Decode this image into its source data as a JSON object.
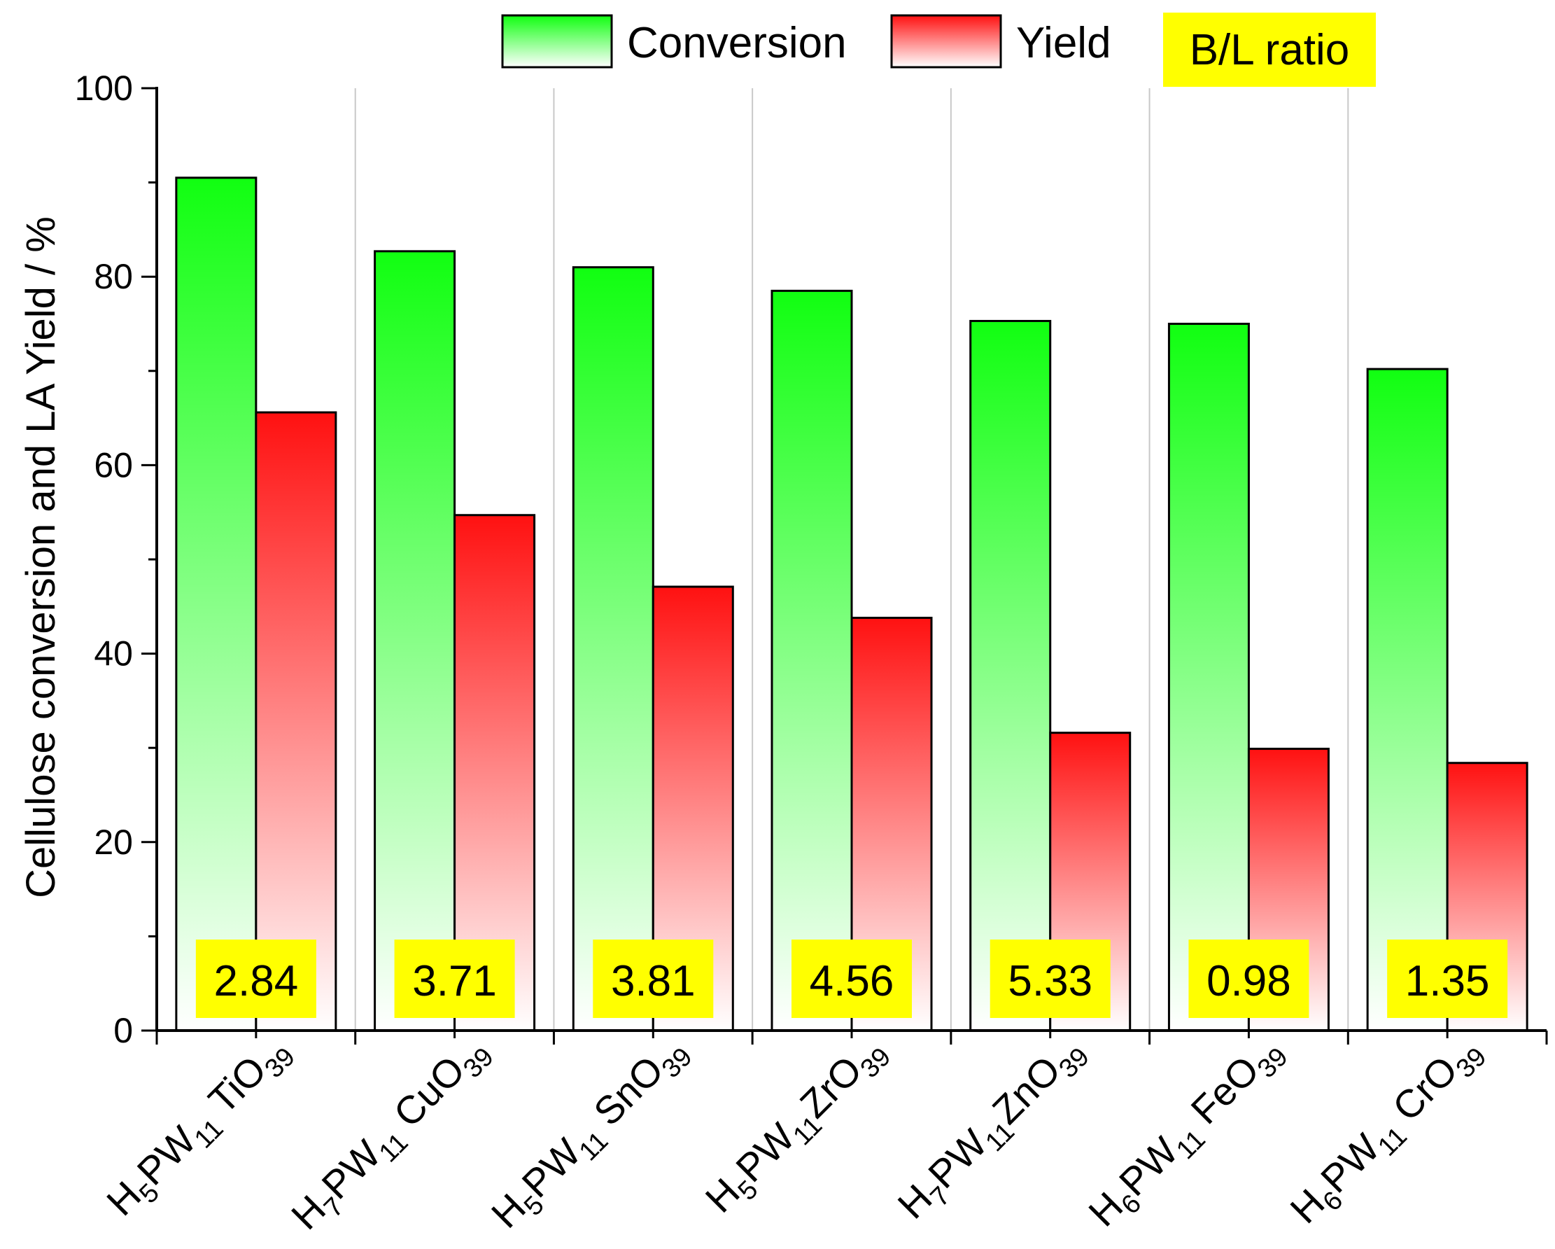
{
  "chart_data": {
    "type": "bar",
    "title": "",
    "xlabel": "",
    "ylabel": "Cellulose conversion and LA Yield / %",
    "ylim": [
      0,
      100
    ],
    "yticks": [
      0,
      20,
      40,
      60,
      80,
      100
    ],
    "grid": "vertical separators between categories",
    "legend_position": "top",
    "categories": [
      {
        "parts": [
          {
            "t": "H",
            "s": false
          },
          {
            "t": "5",
            "s": true
          },
          {
            "t": "PW",
            "s": false
          },
          {
            "t": "11",
            "s": true
          },
          {
            "t": " TiO",
            "s": false
          },
          {
            "t": "39",
            "s": true
          }
        ]
      },
      {
        "parts": [
          {
            "t": "H",
            "s": false
          },
          {
            "t": "7",
            "s": true
          },
          {
            "t": "PW",
            "s": false
          },
          {
            "t": "11",
            "s": true
          },
          {
            "t": " CuO",
            "s": false
          },
          {
            "t": "39",
            "s": true
          }
        ]
      },
      {
        "parts": [
          {
            "t": "H",
            "s": false
          },
          {
            "t": "5",
            "s": true
          },
          {
            "t": "PW",
            "s": false
          },
          {
            "t": "11",
            "s": true
          },
          {
            "t": " SnO",
            "s": false
          },
          {
            "t": "39",
            "s": true
          }
        ]
      },
      {
        "parts": [
          {
            "t": "H",
            "s": false
          },
          {
            "t": "5",
            "s": true
          },
          {
            "t": "PW",
            "s": false
          },
          {
            "t": "11",
            "s": true
          },
          {
            "t": "ZrO",
            "s": false
          },
          {
            "t": "39",
            "s": true
          }
        ]
      },
      {
        "parts": [
          {
            "t": "H",
            "s": false
          },
          {
            "t": "7",
            "s": true
          },
          {
            "t": "PW",
            "s": false
          },
          {
            "t": "11",
            "s": true
          },
          {
            "t": "ZnO",
            "s": false
          },
          {
            "t": "39",
            "s": true
          }
        ]
      },
      {
        "parts": [
          {
            "t": "H",
            "s": false
          },
          {
            "t": "6",
            "s": true
          },
          {
            "t": "PW",
            "s": false
          },
          {
            "t": "11",
            "s": true
          },
          {
            "t": " FeO",
            "s": false
          },
          {
            "t": "39",
            "s": true
          }
        ]
      },
      {
        "parts": [
          {
            "t": "H",
            "s": false
          },
          {
            "t": "6",
            "s": true
          },
          {
            "t": "PW",
            "s": false
          },
          {
            "t": "11",
            "s": true
          },
          {
            "t": " CrO",
            "s": false
          },
          {
            "t": "39",
            "s": true
          }
        ]
      }
    ],
    "series": [
      {
        "name": "Conversion",
        "color": "#22ee22",
        "values": [
          90.5,
          82.7,
          81.0,
          78.5,
          75.3,
          75.0,
          70.2
        ]
      },
      {
        "name": "Yield",
        "color": "#ff2222",
        "values": [
          65.6,
          54.7,
          47.1,
          43.8,
          31.6,
          29.9,
          28.4
        ]
      }
    ],
    "annotation_label": "B/L ratio",
    "annotation_color": "#ffff00",
    "bl_ratios": [
      "2.84",
      "3.71",
      "3.81",
      "4.56",
      "5.33",
      "0.98",
      "1.35"
    ]
  }
}
